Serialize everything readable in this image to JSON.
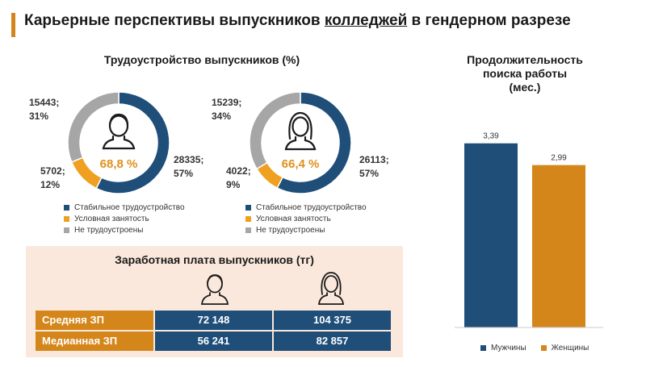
{
  "header": {
    "title_pre": "Карьерные перспективы выпускников ",
    "title_underlined": "колледжей",
    "title_post": " в гендерном разрезе"
  },
  "colors": {
    "stable": "#1f4e79",
    "conditional": "#f0a020",
    "unemployed": "#a6a6a6",
    "accent": "#d4861a"
  },
  "employment": {
    "title": "Трудоустройство выпускников (%)",
    "legend": [
      "Стабильное трудоустройство",
      "Условная занятость",
      "Не трудоустроены"
    ],
    "men": {
      "icon": "man-icon",
      "center_label": "68,8 %",
      "stable_label": [
        "28335;",
        "57%"
      ],
      "conditional_label": [
        "5702;",
        "12%"
      ],
      "unemployed_label": [
        "15443;",
        "31%"
      ]
    },
    "women": {
      "icon": "woman-icon",
      "center_label": "66,4 %",
      "stable_label": [
        "26113;",
        "57%"
      ],
      "conditional_label": [
        "4022;",
        "9%"
      ],
      "unemployed_label": [
        "15239;",
        "34%"
      ]
    }
  },
  "salary": {
    "title": "Заработная плата выпускников (тг)",
    "rows": [
      {
        "label": "Средняя ЗП",
        "men": "72 148",
        "women": "104 375"
      },
      {
        "label": "Медианная ЗП",
        "men": "56 241",
        "women": "82 857"
      }
    ]
  },
  "search": {
    "title_lines": [
      "Продолжительность",
      "поиска работы",
      "(мес.)"
    ],
    "legend": [
      "Мужчины",
      "Женщины"
    ]
  },
  "chart_data": [
    {
      "type": "pie",
      "subtype": "donut",
      "title": "Трудоустройство выпускников (%)",
      "group": "men",
      "categories": [
        "Стабильное трудоустройство",
        "Условная занятость",
        "Не трудоустроены"
      ],
      "values": [
        28335,
        5702,
        15443
      ],
      "percents": [
        57,
        12,
        31
      ],
      "center_label": "68,8 %"
    },
    {
      "type": "pie",
      "subtype": "donut",
      "title": "Трудоустройство выпускников (%)",
      "group": "women",
      "categories": [
        "Стабильное трудоустройство",
        "Условная занятость",
        "Не трудоустроены"
      ],
      "values": [
        26113,
        4022,
        15239
      ],
      "percents": [
        57,
        9,
        34
      ],
      "center_label": "66,4 %"
    },
    {
      "type": "table",
      "title": "Заработная плата выпускников (тг)",
      "columns": [
        "",
        "men",
        "women"
      ],
      "rows": [
        [
          "Средняя ЗП",
          "72 148",
          "104 375"
        ],
        [
          "Медианная ЗП",
          "56 241",
          "82 857"
        ]
      ]
    },
    {
      "type": "bar",
      "title": "Продолжительность поиска работы (мес.)",
      "categories": [
        "Мужчины",
        "Женщины"
      ],
      "values": [
        3.39,
        2.99
      ],
      "value_labels": [
        "3,39",
        "2,99"
      ],
      "colors": [
        "#1f4e79",
        "#d4861a"
      ],
      "ylim": [
        0,
        3.95
      ]
    }
  ]
}
